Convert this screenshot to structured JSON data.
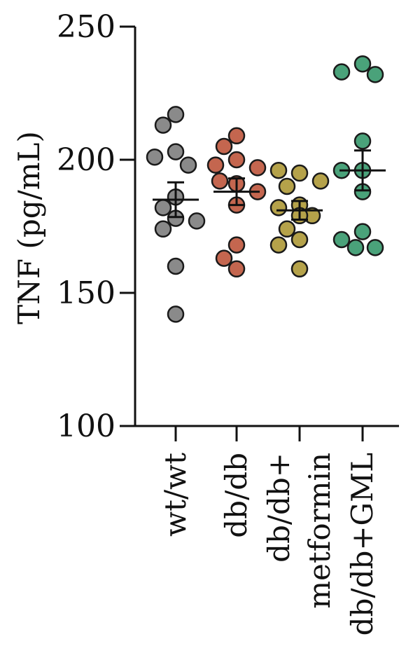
{
  "chart_data": {
    "type": "scatter",
    "title": "",
    "ylabel": "TNF (pg/mL)",
    "xlabel": "",
    "ylim": [
      100,
      250
    ],
    "yticks": [
      100,
      150,
      200,
      250
    ],
    "grid": false,
    "categories": [
      {
        "lines": [
          "wt/wt"
        ]
      },
      {
        "lines": [
          "db/db"
        ]
      },
      {
        "lines": [
          "db/db+",
          "metformin"
        ]
      },
      {
        "lines": [
          "db/db+GML"
        ]
      }
    ],
    "series": [
      {
        "color": "#8a8a8a",
        "values": [
          217,
          213,
          203,
          201,
          198,
          186,
          182,
          178,
          177,
          174,
          160,
          142
        ],
        "mean": 185,
        "sem": 6.5
      },
      {
        "color": "#c4664f",
        "values": [
          209,
          205,
          200,
          198,
          197,
          191,
          192,
          188,
          183,
          168,
          163,
          159
        ],
        "mean": 188,
        "sem": 5
      },
      {
        "color": "#b5a24a",
        "values": [
          195,
          196,
          192,
          190,
          183,
          182,
          179,
          179,
          174,
          170,
          168,
          159
        ],
        "mean": 181,
        "sem": 3.5
      },
      {
        "color": "#4aa27a",
        "values": [
          236,
          233,
          232,
          207,
          196,
          196,
          188,
          173,
          170,
          167,
          167
        ],
        "mean": 196,
        "sem": 7.5
      }
    ]
  }
}
